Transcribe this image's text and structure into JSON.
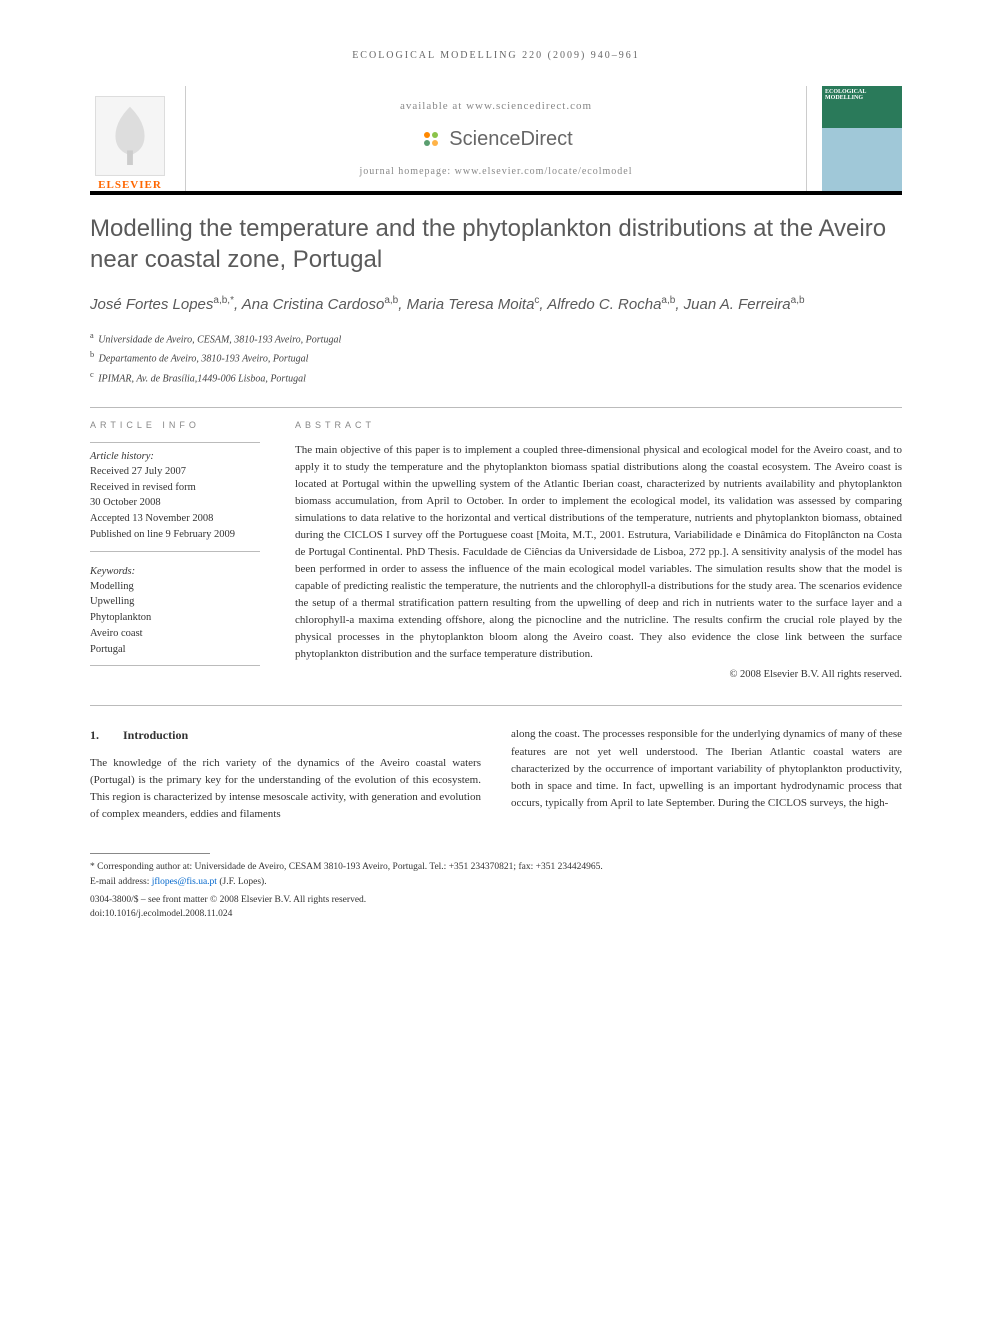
{
  "running_head": "ecological modelling 220 (2009) 940–961",
  "masthead": {
    "publisher": "ELSEVIER",
    "available_at": "available at www.sciencedirect.com",
    "platform": "ScienceDirect",
    "homepage_label": "journal homepage: www.elsevier.com/locate/ecolmodel",
    "cover_journal": "ECOLOGICAL MODELLING"
  },
  "article": {
    "title": "Modelling the temperature and the phytoplankton distributions at the Aveiro near coastal zone, Portugal",
    "authors_html": "José Fortes Lopes<sup>a,b,*</sup>, Ana Cristina Cardoso<sup>a,b</sup>, Maria Teresa Moita<sup>c</sup>, Alfredo C. Rocha<sup>a,b</sup>, Juan A. Ferreira<sup>a,b</sup>",
    "affiliations": [
      {
        "sup": "a",
        "text": "Universidade de Aveiro, CESAM, 3810-193 Aveiro, Portugal"
      },
      {
        "sup": "b",
        "text": "Departamento de Aveiro, 3810-193 Aveiro, Portugal"
      },
      {
        "sup": "c",
        "text": "IPIMAR, Av. de Brasília,1449-006 Lisboa, Portugal"
      }
    ]
  },
  "info": {
    "heading": "article info",
    "history_label": "Article history:",
    "history": [
      "Received 27 July 2007",
      "Received in revised form",
      "30 October 2008",
      "Accepted 13 November 2008",
      "Published on line 9 February 2009"
    ],
    "keywords_label": "Keywords:",
    "keywords": [
      "Modelling",
      "Upwelling",
      "Phytoplankton",
      "Aveiro coast",
      "Portugal"
    ]
  },
  "abstract": {
    "heading": "abstract",
    "text": "The main objective of this paper is to implement a coupled three-dimensional physical and ecological model for the Aveiro coast, and to apply it to study the temperature and the phytoplankton biomass spatial distributions along the coastal ecosystem. The Aveiro coast is located at Portugal within the upwelling system of the Atlantic Iberian coast, characterized by nutrients availability and phytoplankton biomass accumulation, from April to October. In order to implement the ecological model, its validation was assessed by comparing simulations to data relative to the horizontal and vertical distributions of the temperature, nutrients and phytoplankton biomass, obtained during the CICLOS I survey off the Portuguese coast [Moita, M.T., 2001. Estrutura, Variabilidade e Dinâmica do Fitoplâncton na Costa de Portugal Continental. PhD Thesis. Faculdade de Ciências da Universidade de Lisboa, 272 pp.]. A sensitivity analysis of the model has been performed in order to assess the influence of the main ecological model variables. The simulation results show that the model is capable of predicting realistic the temperature, the nutrients and the chlorophyll-a distributions for the study area. The scenarios evidence the setup of a thermal stratification pattern resulting from the upwelling of deep and rich in nutrients water to the surface layer and a chlorophyll-a maxima extending offshore, along the picnocline and the nutricline. The results confirm the crucial role played by the physical processes in the phytoplankton bloom along the Aveiro coast. They also evidence the close link between the surface phytoplankton distribution and the surface temperature distribution.",
    "copyright": "© 2008 Elsevier B.V. All rights reserved."
  },
  "body": {
    "section_num": "1.",
    "section_title": "Introduction",
    "col1": "The knowledge of the rich variety of the dynamics of the Aveiro coastal waters (Portugal) is the primary key for the understanding of the evolution of this ecosystem. This region is characterized by intense mesoscale activity, with generation and evolution of complex meanders, eddies and filaments",
    "col2": "along the coast. The processes responsible for the underlying dynamics of many of these features are not yet well understood. The Iberian Atlantic coastal waters are characterized by the occurrence of important variability of phytoplankton productivity, both in space and time. In fact, upwelling is an important hydrodynamic process that occurs, typically from April to late September. During the CICLOS surveys, the high-"
  },
  "footnote": {
    "corresponding": "* Corresponding author at: Universidade de Aveiro, CESAM 3810-193 Aveiro, Portugal. Tel.: +351 234370821; fax: +351 234424965.",
    "email_label": "E-mail address:",
    "email": "jflopes@fis.ua.pt",
    "email_author": "(J.F. Lopes).",
    "issn_line": "0304-3800/$ – see front matter © 2008 Elsevier B.V. All rights reserved.",
    "doi": "doi:10.1016/j.ecolmodel.2008.11.024"
  },
  "colors": {
    "elsevier_orange": "#ff6600",
    "title_grey": "#5a5a5a",
    "link_blue": "#0066cc",
    "sd_orange": "#ff8800",
    "sd_green": "#8bc34a"
  }
}
